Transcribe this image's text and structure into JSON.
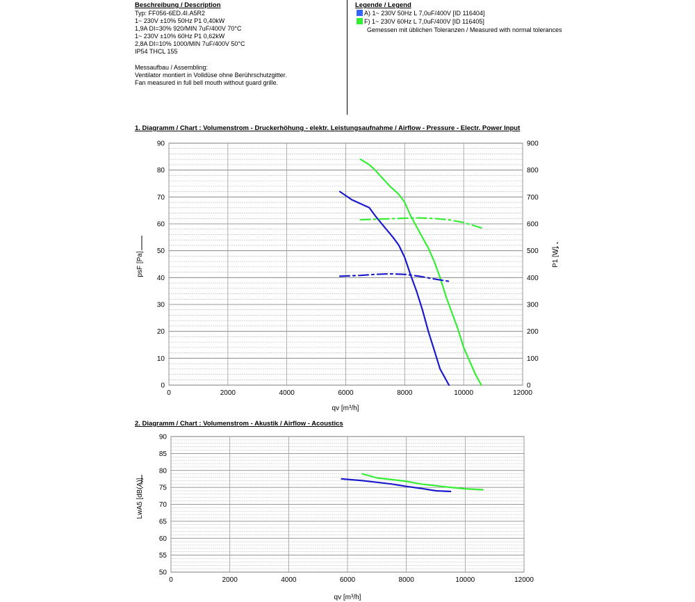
{
  "description": {
    "title": "Beschreibung / Description",
    "lines": [
      "Typ: FF056-6ED.4I.A5R2",
      "1~ 230V ±10% 50Hz P1 0,40kW",
      "1,9A DI=30% 920/MIN 7uF/400V 70°C",
      "1~ 230V ±10% 60Hz P1 0,62kW",
      "2,8A DI=10% 1000/MIN 7uF/400V 50°C",
      "IP54 THCL 155"
    ],
    "assembly_title": "Messaufbau / Assembling:",
    "assembly_lines": [
      "Ventilator montiert in Volldüse ohne Berührschutzgitter.",
      "Fan measured in full bell mouth without guard grille."
    ]
  },
  "legend": {
    "title": "Legende / Legend",
    "items": [
      {
        "label": "A) 1~ 230V 50Hz L 7,0uF/400V [ID 116404]",
        "color": "#3366ff"
      },
      {
        "label": "F) 1~ 230V 60Hz L 7,0uF/400V [ID 116405]",
        "color": "#33ee33"
      }
    ],
    "note": "Gemessen mit üblichen Toleranzen / Measured with normal tolerances"
  },
  "colors": {
    "series_a": "#1a1acc",
    "series_f": "#33ee33"
  },
  "chart_data": [
    {
      "type": "line",
      "title": "1. Diagramm / Chart :   Volumenstrom - Druckerhöhung - elektr. Leistungsaufnahme / Airflow - Pressure - Electr. Power Input",
      "xlabel": "qv [m³/h]",
      "ylabel": "psF [Pa]",
      "y2label": "P1 [W]",
      "xlim": [
        0,
        12000
      ],
      "ylim": [
        0,
        90
      ],
      "y2lim": [
        0,
        900
      ],
      "xticks": [
        "0",
        "2000",
        "4000",
        "6000",
        "8000",
        "10000",
        "12000"
      ],
      "yticks": [
        "0",
        "10",
        "20",
        "30",
        "40",
        "50",
        "60",
        "70",
        "80",
        "90"
      ],
      "y2ticks": [
        "0",
        "100",
        "200",
        "300",
        "400",
        "500",
        "600",
        "700",
        "800",
        "900"
      ],
      "grid": true,
      "series": [
        {
          "id": "A-pressure",
          "axis": "y",
          "dash": false,
          "points": [
            [
              5800,
              72
            ],
            [
              6200,
              69
            ],
            [
              6500,
              67.5
            ],
            [
              6800,
              66
            ],
            [
              7000,
              63
            ],
            [
              7300,
              59
            ],
            [
              7600,
              55
            ],
            [
              7800,
              52
            ],
            [
              8000,
              47.5
            ],
            [
              8200,
              41
            ],
            [
              8400,
              35
            ],
            [
              8600,
              28
            ],
            [
              8800,
              20
            ],
            [
              9000,
              13
            ],
            [
              9200,
              6
            ],
            [
              9500,
              0
            ]
          ]
        },
        {
          "id": "F-pressure",
          "axis": "y",
          "dash": false,
          "points": [
            [
              6500,
              84
            ],
            [
              6800,
              82
            ],
            [
              7000,
              80
            ],
            [
              7200,
              77.5
            ],
            [
              7500,
              74
            ],
            [
              7800,
              71
            ],
            [
              8000,
              68
            ],
            [
              8200,
              63
            ],
            [
              8500,
              57
            ],
            [
              8800,
              51
            ],
            [
              9000,
              46
            ],
            [
              9200,
              40
            ],
            [
              9400,
              33
            ],
            [
              9600,
              27
            ],
            [
              9800,
              21
            ],
            [
              10000,
              14
            ],
            [
              10200,
              9
            ],
            [
              10400,
              4
            ],
            [
              10600,
              0
            ]
          ]
        },
        {
          "id": "A-power",
          "axis": "y2",
          "dash": true,
          "points": [
            [
              5800,
              405
            ],
            [
              6500,
              408
            ],
            [
              7000,
              412
            ],
            [
              7500,
              414
            ],
            [
              8000,
              412
            ],
            [
              8500,
              405
            ],
            [
              9000,
              395
            ],
            [
              9500,
              386
            ]
          ]
        },
        {
          "id": "F-power",
          "axis": "y2",
          "dash": true,
          "points": [
            [
              6500,
              615
            ],
            [
              7000,
              617
            ],
            [
              7500,
              619
            ],
            [
              8000,
              621
            ],
            [
              8500,
              622
            ],
            [
              9000,
              620
            ],
            [
              9500,
              615
            ],
            [
              10000,
              605
            ],
            [
              10600,
              585
            ]
          ]
        }
      ]
    },
    {
      "type": "line",
      "title": "2. Diagramm / Chart :   Volumenstrom - Akustik / Airflow - Acoustics",
      "xlabel": "qv [m³/h]",
      "ylabel": "LwA5 [dB(A)]",
      "xlim": [
        0,
        12000
      ],
      "ylim": [
        50,
        90
      ],
      "xticks": [
        "0",
        "2000",
        "4000",
        "6000",
        "8000",
        "10000",
        "12000"
      ],
      "yticks": [
        "50",
        "55",
        "60",
        "65",
        "70",
        "75",
        "80",
        "85",
        "90"
      ],
      "grid": true,
      "series": [
        {
          "id": "A-acoustic",
          "axis": "y",
          "dash": false,
          "points": [
            [
              5800,
              77.5
            ],
            [
              6500,
              77
            ],
            [
              7000,
              76.5
            ],
            [
              7500,
              76
            ],
            [
              8000,
              75.3
            ],
            [
              8500,
              74.7
            ],
            [
              9000,
              74
            ],
            [
              9500,
              73.8
            ]
          ]
        },
        {
          "id": "F-acoustic",
          "axis": "y",
          "dash": false,
          "points": [
            [
              6500,
              79
            ],
            [
              7000,
              77.8
            ],
            [
              7500,
              77.3
            ],
            [
              8000,
              76.8
            ],
            [
              8500,
              76
            ],
            [
              9000,
              75.5
            ],
            [
              9500,
              75
            ],
            [
              10000,
              74.6
            ],
            [
              10600,
              74.3
            ]
          ]
        }
      ]
    }
  ]
}
